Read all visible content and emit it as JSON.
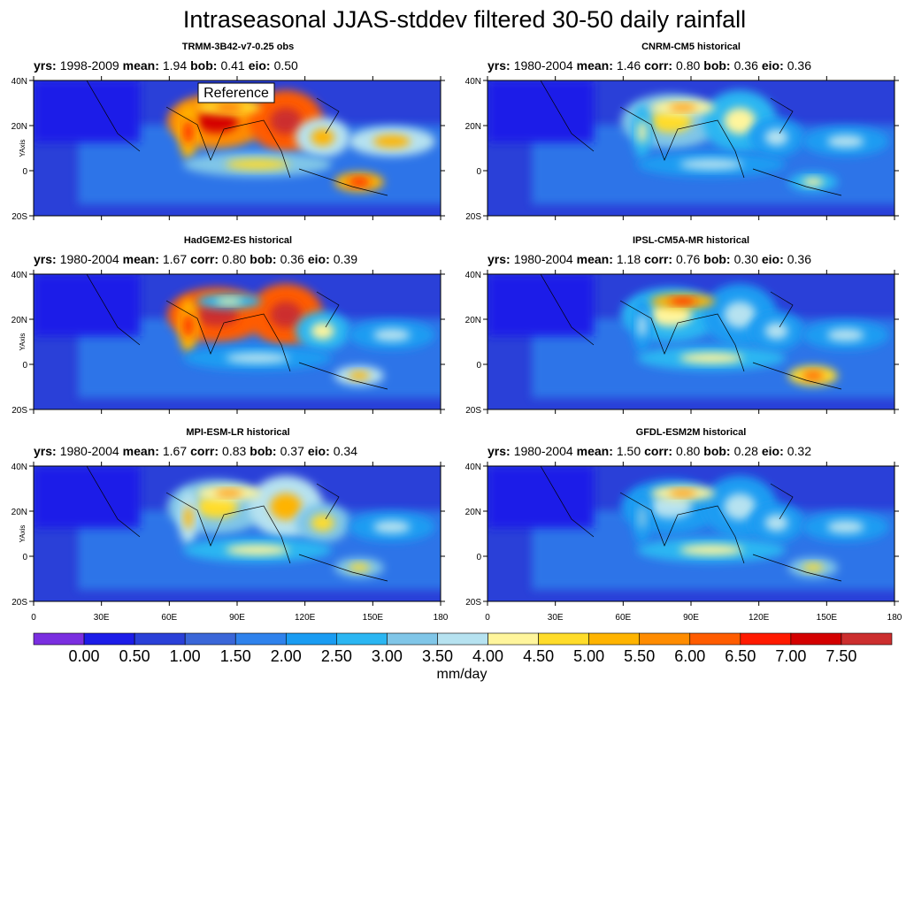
{
  "title": "Intraseasonal JJAS-stddev filtered 30-50 daily rainfall",
  "y_axis_label": "YAxis",
  "lat_ticks": [
    "40N",
    "20N",
    "0",
    "20S"
  ],
  "lon_ticks": [
    "0",
    "30E",
    "60E",
    "90E",
    "120E",
    "150E",
    "180"
  ],
  "panels": [
    {
      "title": "TRMM-3B42-v7-0.25 obs",
      "annotation": "Reference",
      "stats": [
        {
          "key": "yrs:",
          "value": "1998-2009"
        },
        {
          "key": "mean:",
          "value": "1.94"
        },
        {
          "key": "bob:",
          "value": "0.41"
        },
        {
          "key": "eio:",
          "value": "0.50"
        }
      ]
    },
    {
      "title": "CNRM-CM5 historical",
      "stats": [
        {
          "key": "yrs:",
          "value": "1980-2004"
        },
        {
          "key": "mean:",
          "value": "1.46"
        },
        {
          "key": "corr:",
          "value": "0.80"
        },
        {
          "key": "bob:",
          "value": "0.36"
        },
        {
          "key": "eio:",
          "value": "0.36"
        }
      ]
    },
    {
      "title": "HadGEM2-ES historical",
      "stats": [
        {
          "key": "yrs:",
          "value": "1980-2004"
        },
        {
          "key": "mean:",
          "value": "1.67"
        },
        {
          "key": "corr:",
          "value": "0.80"
        },
        {
          "key": "bob:",
          "value": "0.36"
        },
        {
          "key": "eio:",
          "value": "0.39"
        }
      ]
    },
    {
      "title": "IPSL-CM5A-MR historical",
      "stats": [
        {
          "key": "yrs:",
          "value": "1980-2004"
        },
        {
          "key": "mean:",
          "value": "1.18"
        },
        {
          "key": "corr:",
          "value": "0.76"
        },
        {
          "key": "bob:",
          "value": "0.30"
        },
        {
          "key": "eio:",
          "value": "0.36"
        }
      ]
    },
    {
      "title": "MPI-ESM-LR historical",
      "stats": [
        {
          "key": "yrs:",
          "value": "1980-2004"
        },
        {
          "key": "mean:",
          "value": "1.67"
        },
        {
          "key": "corr:",
          "value": "0.83"
        },
        {
          "key": "bob:",
          "value": "0.37"
        },
        {
          "key": "eio:",
          "value": "0.34"
        }
      ]
    },
    {
      "title": "GFDL-ESM2M historical",
      "stats": [
        {
          "key": "yrs:",
          "value": "1980-2004"
        },
        {
          "key": "mean:",
          "value": "1.50"
        },
        {
          "key": "corr:",
          "value": "0.80"
        },
        {
          "key": "bob:",
          "value": "0.28"
        },
        {
          "key": "eio:",
          "value": "0.32"
        }
      ]
    }
  ],
  "colorbar": {
    "colors": [
      "#7a2ee0",
      "#1c1ce8",
      "#2a40d8",
      "#3a66d8",
      "#2f82ec",
      "#1a9cf2",
      "#2bb6f2",
      "#80c6e8",
      "#b6e2f0",
      "#fff59c",
      "#ffdc2a",
      "#ffb400",
      "#ff8c00",
      "#ff5c00",
      "#ff1a00",
      "#d40000",
      "#cc2e2e"
    ],
    "labels": [
      "0.00",
      "0.50",
      "1.00",
      "1.50",
      "2.00",
      "2.50",
      "3.00",
      "3.50",
      "4.00",
      "4.50",
      "5.00",
      "5.50",
      "6.00",
      "6.50",
      "7.00",
      "7.50"
    ],
    "units": "mm/day"
  }
}
